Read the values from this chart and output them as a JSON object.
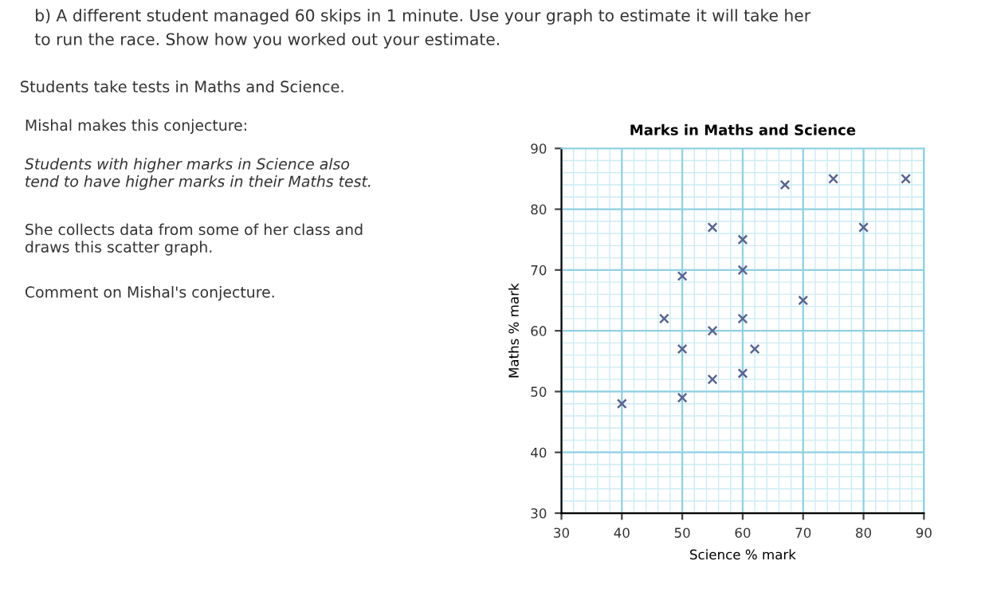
{
  "chart_data": {
    "type": "scatter",
    "title": "Marks in Maths and Science",
    "xlabel": "Science % mark",
    "ylabel": "Maths % mark",
    "x": [
      40,
      47,
      50,
      50,
      50,
      55,
      55,
      55,
      60,
      60,
      60,
      60,
      62,
      67,
      70,
      75,
      80,
      87
    ],
    "values": [
      48,
      62,
      69,
      57,
      49,
      77,
      60,
      52,
      75,
      70,
      62,
      53,
      57,
      84,
      65,
      85,
      77,
      85
    ],
    "color": "#5a6590",
    "marker": "cross",
    "grid": true,
    "xlim": [
      30,
      90
    ],
    "ylim": [
      30,
      90
    ],
    "xticks": [
      30,
      40,
      50,
      60,
      70,
      80,
      90
    ],
    "yticks": [
      30,
      40,
      50,
      60,
      70,
      80,
      90
    ],
    "annotations": [
      "b) A different student managed 60 skips in 1 minute. Use your graph to estimate it will take her",
      "to run the race. Show how you worked out your estimate.",
      "Students take tests in Maths and Science.",
      "Mishal makes this conjecture:",
      "Students with higher marks in Science also\ntend to have higher marks in their Maths test.",
      "She collects data from some of her class and\ndraws this scatter graph.",
      "Comment on Mishal's conjecture."
    ]
  }
}
